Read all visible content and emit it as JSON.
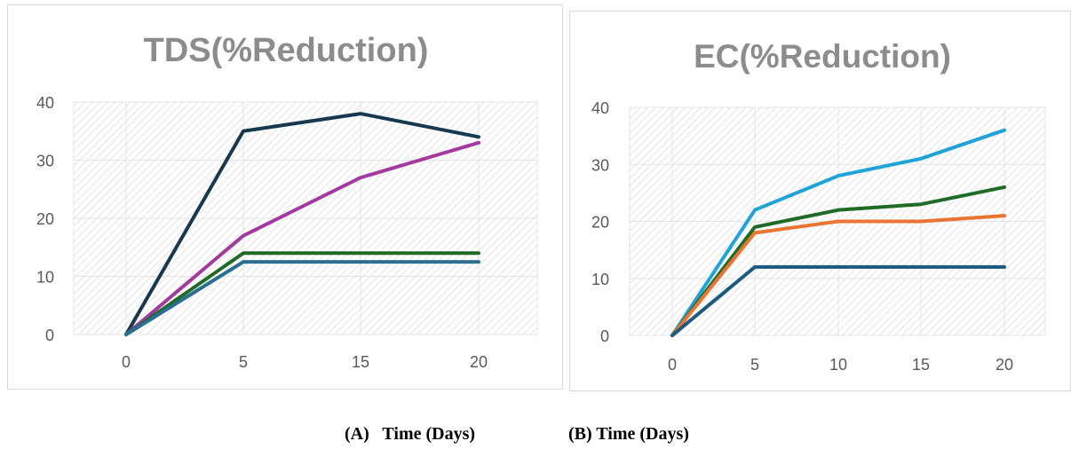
{
  "chart_data": [
    {
      "type": "line",
      "title": "TDS(%Reduction)",
      "categories": [
        "0",
        "5",
        "15",
        "20"
      ],
      "ylim": [
        0,
        40
      ],
      "yticks": [
        "0",
        "10",
        "20",
        "30",
        "40"
      ],
      "grid": true,
      "series": [
        {
          "color": "#17394f",
          "values": [
            0,
            35,
            38,
            34
          ]
        },
        {
          "color": "#a23aa0",
          "values": [
            0,
            17,
            27,
            33
          ]
        },
        {
          "color": "#1f6b26",
          "values": [
            0,
            14,
            14,
            14
          ]
        },
        {
          "color": "#2a6f90",
          "values": [
            0,
            12.5,
            12.5,
            12.5
          ]
        }
      ]
    },
    {
      "type": "line",
      "title": "EC(%Reduction)",
      "categories": [
        "0",
        "5",
        "10",
        "15",
        "20"
      ],
      "ylim": [
        0,
        40
      ],
      "yticks": [
        "0",
        "10",
        "20",
        "30",
        "40"
      ],
      "grid": true,
      "series": [
        {
          "color": "#20a4d8",
          "values": [
            0,
            22,
            28,
            31,
            36
          ]
        },
        {
          "color": "#1f6b26",
          "values": [
            0,
            19,
            22,
            23,
            26
          ]
        },
        {
          "color": "#ea7434",
          "values": [
            0,
            18,
            20,
            20,
            21
          ]
        },
        {
          "color": "#1d5a80",
          "values": [
            0,
            12,
            12,
            12,
            12
          ]
        }
      ]
    }
  ],
  "captions": {
    "a": "(A)   Time (Days)",
    "b": "(B) Time (Days)"
  }
}
